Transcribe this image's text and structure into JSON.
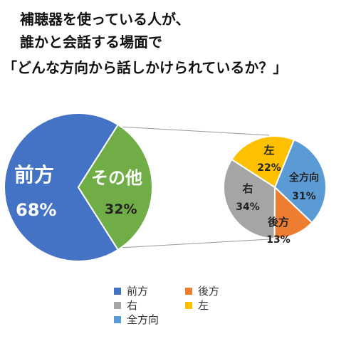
{
  "title": {
    "line1": "補聴器を使っている人が、",
    "line2": "誰かと会話する場面で",
    "line3": "「どんな方向から話しかけられているか？」"
  },
  "chart_data": [
    {
      "type": "pie",
      "categories": [
        "前方",
        "その他"
      ],
      "values": [
        68,
        32
      ],
      "value_labels": [
        "68%",
        "32%"
      ],
      "colors": [
        "#4472C4",
        "#70AD47"
      ]
    },
    {
      "type": "pie",
      "categories": [
        "全方向",
        "後方",
        "右",
        "左"
      ],
      "values": [
        31,
        13,
        34,
        22
      ],
      "value_labels": [
        "31%",
        "13%",
        "34%",
        "22%"
      ],
      "colors": [
        "#5B9BD5",
        "#ED7D31",
        "#A5A5A5",
        "#FFC000"
      ]
    }
  ],
  "legend": [
    {
      "label": "前方",
      "color": "#4472C4"
    },
    {
      "label": "後方",
      "color": "#ED7D31"
    },
    {
      "label": "右",
      "color": "#A5A5A5"
    },
    {
      "label": "左",
      "color": "#FFC000"
    },
    {
      "label": "全方向",
      "color": "#5B9BD5"
    }
  ]
}
